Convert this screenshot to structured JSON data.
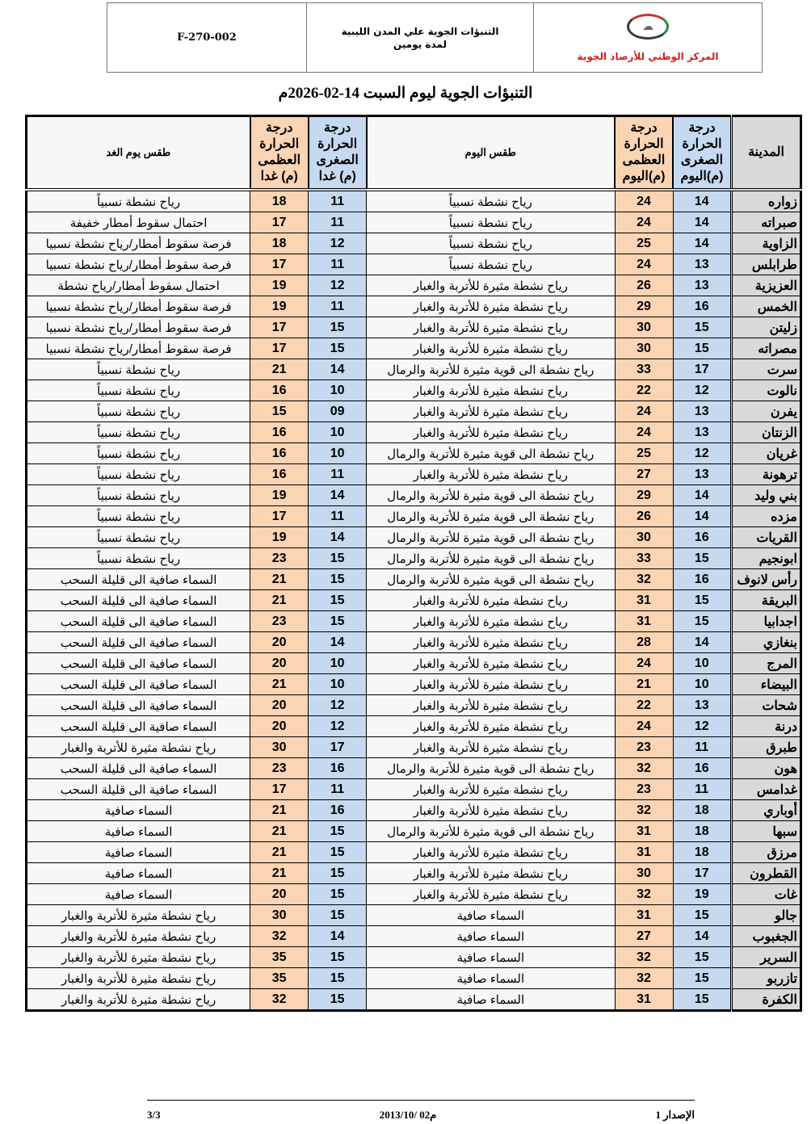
{
  "header": {
    "code": "F-270-002",
    "doc_title_line1": "التنبؤات الجوية علي المدن الليبية",
    "doc_title_line2": "لمدة يومين",
    "org": "المركز الوطني للأرصاد الجوية"
  },
  "title": "التنبؤات الجوية ليوم السبت 14-02-2026م",
  "columns": {
    "city": "المدينة",
    "min_today": "درجة الحرارة الصغرى (م)اليوم",
    "max_today": "درجة الحرارة العظمى (م)اليوم",
    "weather_today": "طقس اليوم",
    "min_tomorrow": "درجة الحرارة الصغرى (م) غدا",
    "max_tomorrow": "درجة الحرارة العظمى (م) غدا",
    "weather_tomorrow": "طقس يوم الغد"
  },
  "colors": {
    "min": "#c6d9f1",
    "max": "#fbd4b4",
    "city": "#d9d9d9"
  },
  "rows": [
    {
      "city": "زواره",
      "min_today": "14",
      "max_today": "24",
      "weather_today": "رياح نشطة نسبياً",
      "min_tomorrow": "11",
      "max_tomorrow": "18",
      "weather_tomorrow": "رياح نشطة نسبياً"
    },
    {
      "city": "صبراته",
      "min_today": "14",
      "max_today": "24",
      "weather_today": "رياح نشطة نسبياً",
      "min_tomorrow": "11",
      "max_tomorrow": "17",
      "weather_tomorrow": "احتمال سقوط أمطار خفيفة"
    },
    {
      "city": "الزاوية",
      "min_today": "14",
      "max_today": "25",
      "weather_today": "رياح نشطة نسبياً",
      "min_tomorrow": "12",
      "max_tomorrow": "18",
      "weather_tomorrow": "فرصة سقوط أمطار/رياح نشطة نسبيا"
    },
    {
      "city": "طرابلس",
      "min_today": "13",
      "max_today": "24",
      "weather_today": "رياح نشطة نسبياً",
      "min_tomorrow": "11",
      "max_tomorrow": "17",
      "weather_tomorrow": "فرصة سقوط أمطار/رياح نشطة نسبيا"
    },
    {
      "city": "العزيزية",
      "min_today": "13",
      "max_today": "26",
      "weather_today": "رياح نشطة مثيرة للأتربة والغبار",
      "min_tomorrow": "12",
      "max_tomorrow": "19",
      "weather_tomorrow": "احتمال سقوط أمطار/رياح نشطة"
    },
    {
      "city": "الخمس",
      "min_today": "16",
      "max_today": "29",
      "weather_today": "رياح نشطة مثيرة للأتربة والغبار",
      "min_tomorrow": "11",
      "max_tomorrow": "19",
      "weather_tomorrow": "فرصة سقوط أمطار/رياح نشطة نسبيا"
    },
    {
      "city": "زليتن",
      "min_today": "15",
      "max_today": "30",
      "weather_today": "رياح نشطة مثيرة للأتربة والغبار",
      "min_tomorrow": "15",
      "max_tomorrow": "17",
      "weather_tomorrow": "فرصة سقوط أمطار/رياح نشطة نسبيا"
    },
    {
      "city": "مصراته",
      "min_today": "15",
      "max_today": "30",
      "weather_today": "رياح نشطة مثيرة للأتربة والغبار",
      "min_tomorrow": "15",
      "max_tomorrow": "17",
      "weather_tomorrow": "فرصة سقوط أمطار/رياح نشطة نسبيا"
    },
    {
      "city": "سرت",
      "min_today": "17",
      "max_today": "33",
      "weather_today": "رياح نشطة الى قوية مثيرة للأتربة والرمال",
      "min_tomorrow": "14",
      "max_tomorrow": "21",
      "weather_tomorrow": "رياح نشطة نسبياً"
    },
    {
      "city": "نالوت",
      "min_today": "12",
      "max_today": "22",
      "weather_today": "رياح نشطة مثيرة للأتربة والغبار",
      "min_tomorrow": "10",
      "max_tomorrow": "16",
      "weather_tomorrow": "رياح نشطة نسبياً"
    },
    {
      "city": "يفرن",
      "min_today": "13",
      "max_today": "24",
      "weather_today": "رياح نشطة مثيرة للأتربة والغبار",
      "min_tomorrow": "09",
      "max_tomorrow": "15",
      "weather_tomorrow": "رياح نشطة نسبياً"
    },
    {
      "city": "الزنتان",
      "min_today": "13",
      "max_today": "24",
      "weather_today": "رياح نشطة مثيرة للأتربة والغبار",
      "min_tomorrow": "10",
      "max_tomorrow": "16",
      "weather_tomorrow": "رياح نشطة نسبياً"
    },
    {
      "city": "غريان",
      "min_today": "12",
      "max_today": "25",
      "weather_today": "رياح نشطة الى قوية مثيرة للأتربة والرمال",
      "min_tomorrow": "10",
      "max_tomorrow": "16",
      "weather_tomorrow": "رياح نشطة نسبياً"
    },
    {
      "city": "ترهونة",
      "min_today": "13",
      "max_today": "27",
      "weather_today": "رياح نشطة مثيرة للأتربة والغبار",
      "min_tomorrow": "11",
      "max_tomorrow": "16",
      "weather_tomorrow": "رياح نشطة نسبياً"
    },
    {
      "city": "بني وليد",
      "min_today": "14",
      "max_today": "29",
      "weather_today": "رياح نشطة الى قوية مثيرة للأتربة والرمال",
      "min_tomorrow": "14",
      "max_tomorrow": "19",
      "weather_tomorrow": "رياح نشطة نسبياً"
    },
    {
      "city": "مزده",
      "min_today": "14",
      "max_today": "26",
      "weather_today": "رياح نشطة الى قوية مثيرة للأتربة والرمال",
      "min_tomorrow": "11",
      "max_tomorrow": "17",
      "weather_tomorrow": "رياح نشطة نسبياً"
    },
    {
      "city": "القريات",
      "min_today": "16",
      "max_today": "30",
      "weather_today": "رياح نشطة الى قوية مثيرة للأتربة والرمال",
      "min_tomorrow": "14",
      "max_tomorrow": "19",
      "weather_tomorrow": "رياح نشطة نسبياً"
    },
    {
      "city": "ابونجيم",
      "min_today": "15",
      "max_today": "33",
      "weather_today": "رياح نشطة الى قوية مثيرة للأتربة والرمال",
      "min_tomorrow": "15",
      "max_tomorrow": "23",
      "weather_tomorrow": "رياح نشطة نسبياً"
    },
    {
      "city": "رأس لانوف",
      "min_today": "16",
      "max_today": "32",
      "weather_today": "رياح نشطة الى قوية مثيرة للأتربة والرمال",
      "min_tomorrow": "15",
      "max_tomorrow": "21",
      "weather_tomorrow": "السماء صافية الى قليلة السحب"
    },
    {
      "city": "البريقة",
      "min_today": "15",
      "max_today": "31",
      "weather_today": "رياح نشطة مثيرة للأتربة والغبار",
      "min_tomorrow": "15",
      "max_tomorrow": "21",
      "weather_tomorrow": "السماء صافية الى قليلة السحب"
    },
    {
      "city": "اجدابيا",
      "min_today": "15",
      "max_today": "31",
      "weather_today": "رياح نشطة مثيرة للأتربة والغبار",
      "min_tomorrow": "15",
      "max_tomorrow": "23",
      "weather_tomorrow": "السماء صافية الى قليلة السحب"
    },
    {
      "city": "بنغازي",
      "min_today": "14",
      "max_today": "28",
      "weather_today": "رياح نشطة مثيرة للأتربة والغبار",
      "min_tomorrow": "14",
      "max_tomorrow": "20",
      "weather_tomorrow": "السماء صافية الى قليلة السحب"
    },
    {
      "city": "المرج",
      "min_today": "10",
      "max_today": "24",
      "weather_today": "رياح نشطة مثيرة للأتربة والغبار",
      "min_tomorrow": "10",
      "max_tomorrow": "20",
      "weather_tomorrow": "السماء صافية الى قليلة السحب"
    },
    {
      "city": "البيضاء",
      "min_today": "10",
      "max_today": "21",
      "weather_today": "رياح نشطة مثيرة للأتربة والغبار",
      "min_tomorrow": "10",
      "max_tomorrow": "21",
      "weather_tomorrow": "السماء صافية الى قليلة السحب"
    },
    {
      "city": "شحات",
      "min_today": "13",
      "max_today": "22",
      "weather_today": "رياح نشطة مثيرة للأتربة والغبار",
      "min_tomorrow": "12",
      "max_tomorrow": "20",
      "weather_tomorrow": "السماء صافية الى قليلة السحب"
    },
    {
      "city": "درنة",
      "min_today": "12",
      "max_today": "24",
      "weather_today": "رياح نشطة مثيرة للأتربة والغبار",
      "min_tomorrow": "12",
      "max_tomorrow": "20",
      "weather_tomorrow": "السماء صافية الى قليلة السحب"
    },
    {
      "city": "طبرق",
      "min_today": "11",
      "max_today": "23",
      "weather_today": "رياح نشطة مثيرة للأتربة والغبار",
      "min_tomorrow": "17",
      "max_tomorrow": "30",
      "weather_tomorrow": "رياح نشطة مثيرة للأتربة والغبار"
    },
    {
      "city": "هون",
      "min_today": "16",
      "max_today": "32",
      "weather_today": "رياح نشطة الى قوية مثيرة للأتربة والرمال",
      "min_tomorrow": "16",
      "max_tomorrow": "23",
      "weather_tomorrow": "السماء صافية الى قليلة السحب"
    },
    {
      "city": "غدامس",
      "min_today": "11",
      "max_today": "23",
      "weather_today": "رياح نشطة مثيرة للأتربة والغبار",
      "min_tomorrow": "11",
      "max_tomorrow": "17",
      "weather_tomorrow": "السماء صافية الى قليلة السحب"
    },
    {
      "city": "أوباري",
      "min_today": "18",
      "max_today": "32",
      "weather_today": "رياح نشطة مثيرة للأتربة والغبار",
      "min_tomorrow": "16",
      "max_tomorrow": "21",
      "weather_tomorrow": "السماء صافية"
    },
    {
      "city": "سبها",
      "min_today": "18",
      "max_today": "31",
      "weather_today": "رياح نشطة الى قوية مثيرة للأتربة والرمال",
      "min_tomorrow": "15",
      "max_tomorrow": "21",
      "weather_tomorrow": "السماء صافية"
    },
    {
      "city": "مرزق",
      "min_today": "18",
      "max_today": "31",
      "weather_today": "رياح نشطة مثيرة للأتربة والغبار",
      "min_tomorrow": "15",
      "max_tomorrow": "21",
      "weather_tomorrow": "السماء صافية"
    },
    {
      "city": "القطرون",
      "min_today": "17",
      "max_today": "30",
      "weather_today": "رياح نشطة مثيرة للأتربة والغبار",
      "min_tomorrow": "15",
      "max_tomorrow": "21",
      "weather_tomorrow": "السماء صافية"
    },
    {
      "city": "غات",
      "min_today": "19",
      "max_today": "32",
      "weather_today": "رياح نشطة مثيرة للأتربة والغبار",
      "min_tomorrow": "15",
      "max_tomorrow": "20",
      "weather_tomorrow": "السماء صافية"
    },
    {
      "city": "جالو",
      "min_today": "15",
      "max_today": "31",
      "weather_today": "السماء صافية",
      "min_tomorrow": "15",
      "max_tomorrow": "30",
      "weather_tomorrow": "رياح نشطة مثيرة للأتربة والغبار"
    },
    {
      "city": "الجغبوب",
      "min_today": "14",
      "max_today": "27",
      "weather_today": "السماء صافية",
      "min_tomorrow": "14",
      "max_tomorrow": "32",
      "weather_tomorrow": "رياح نشطة مثيرة للأتربة والغبار"
    },
    {
      "city": "السرير",
      "min_today": "15",
      "max_today": "32",
      "weather_today": "السماء صافية",
      "min_tomorrow": "15",
      "max_tomorrow": "35",
      "weather_tomorrow": "رياح نشطة مثيرة للأتربة والغبار"
    },
    {
      "city": "تازربو",
      "min_today": "15",
      "max_today": "32",
      "weather_today": "السماء صافية",
      "min_tomorrow": "15",
      "max_tomorrow": "35",
      "weather_tomorrow": "رياح نشطة مثيرة للأتربة والغبار"
    },
    {
      "city": "الكفرة",
      "min_today": "15",
      "max_today": "31",
      "weather_today": "السماء صافية",
      "min_tomorrow": "15",
      "max_tomorrow": "32",
      "weather_tomorrow": "رياح نشطة مثيرة للأتربة والغبار"
    }
  ],
  "footer": {
    "page": "3/3",
    "date": "2013/10/ 02م",
    "version": "الإصدار 1"
  }
}
